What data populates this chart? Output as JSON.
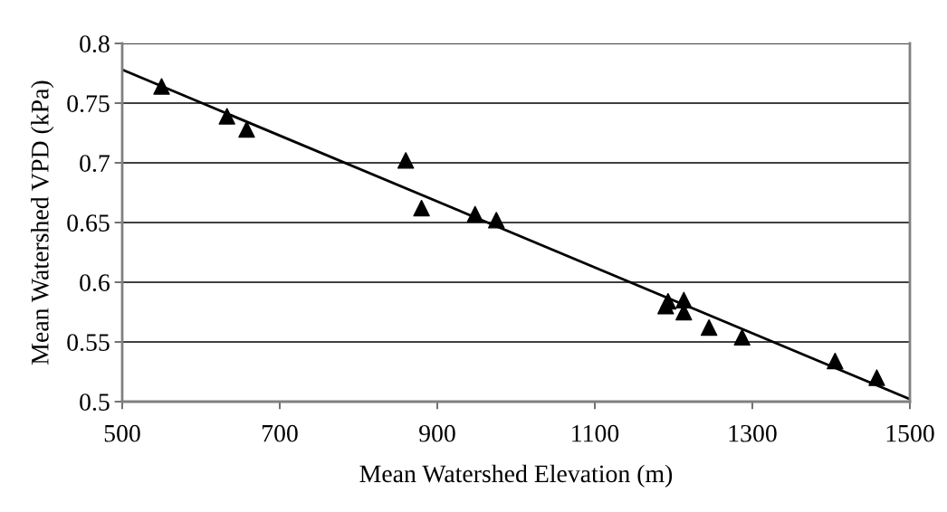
{
  "chart_data": {
    "type": "scatter",
    "xlabel": "Mean Watershed Elevation (m)",
    "ylabel": "Mean Watershed VPD (kPa)",
    "x": [
      550,
      633,
      658,
      860,
      880,
      948,
      975,
      1190,
      1193,
      1213,
      1213,
      1245,
      1287,
      1405,
      1458
    ],
    "series": [
      {
        "color": "#000000",
        "marker": "triangle",
        "values": [
          0.764,
          0.739,
          0.728,
          0.702,
          0.662,
          0.657,
          0.652,
          0.58,
          0.584,
          0.585,
          0.575,
          0.562,
          0.554,
          0.534,
          0.52
        ]
      },
      {
        "type": "line",
        "color": "#000000",
        "x": [
          500,
          1500
        ],
        "values": [
          0.778,
          0.502
        ],
        "marker": "none",
        "line_style": "solid"
      }
    ],
    "xlim": [
      500,
      1500
    ],
    "xticks": [
      500,
      700,
      900,
      1100,
      1300,
      1500
    ],
    "ylim": [
      0.5,
      0.8
    ],
    "yticks": [
      0.5,
      0.55,
      0.6,
      0.65,
      0.7,
      0.75,
      0.8
    ],
    "grid": "y",
    "legend": false
  }
}
